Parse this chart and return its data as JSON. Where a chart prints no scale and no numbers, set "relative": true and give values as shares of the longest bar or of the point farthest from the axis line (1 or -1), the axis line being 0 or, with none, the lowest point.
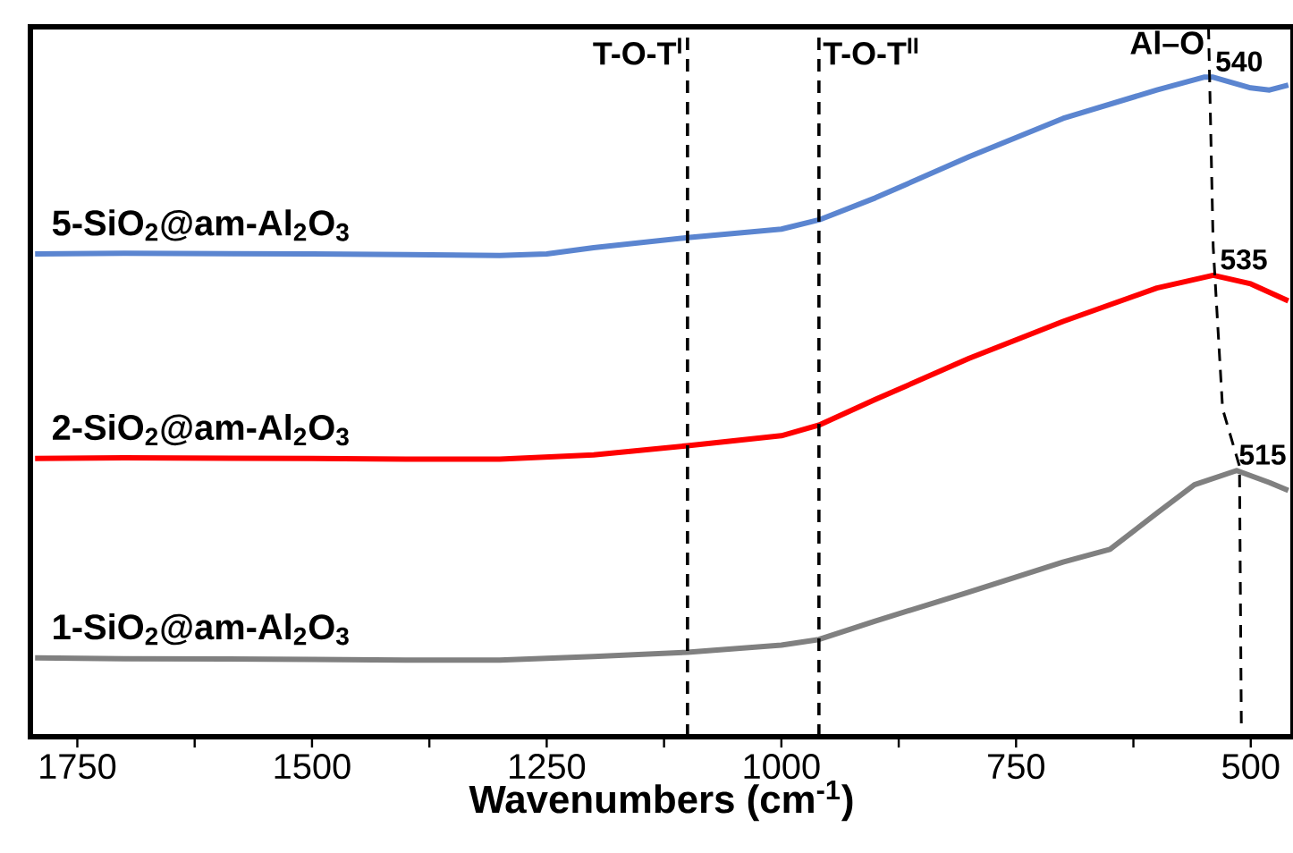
{
  "chart_data": {
    "type": "line",
    "relative": true,
    "xlabel": "Wavenumbers (cm$^{-1}$)",
    "xlim": [
      1800,
      455
    ],
    "xticks": [
      1750,
      {
        "value": 1625,
        "label": null
      },
      1500,
      {
        "value": 1375,
        "label": null
      },
      1250,
      {
        "value": 1125,
        "label": null
      },
      1000,
      {
        "value": 875,
        "label": null
      },
      750,
      {
        "value": 625,
        "label": null
      },
      500
    ],
    "marker": "none",
    "series": [
      {
        "name": "5-SiO$_{2}$@am-Al$_{2}$O$_{3}$",
        "color": "#5b85d0",
        "x": [
          1795,
          1700,
          1500,
          1400,
          1300,
          1250,
          1200,
          1100,
          1000,
          960,
          900,
          800,
          700,
          600,
          550,
          540,
          500,
          480,
          460
        ],
        "values": [
          0.68,
          0.681,
          0.68,
          0.679,
          0.678,
          0.68,
          0.689,
          0.703,
          0.715,
          0.728,
          0.759,
          0.817,
          0.871,
          0.911,
          0.929,
          0.929,
          0.914,
          0.911,
          0.918
        ]
      },
      {
        "name": "2-SiO$_{2}$@am-Al$_{2}$O$_{3}$",
        "color": "#ff0000",
        "x": [
          1795,
          1700,
          1500,
          1400,
          1300,
          1200,
          1100,
          1000,
          960,
          900,
          800,
          700,
          600,
          540,
          500,
          460
        ],
        "values": [
          0.392,
          0.393,
          0.392,
          0.391,
          0.391,
          0.397,
          0.41,
          0.424,
          0.439,
          0.475,
          0.533,
          0.585,
          0.632,
          0.65,
          0.638,
          0.614
        ]
      },
      {
        "name": "1-SiO$_{2}$@am-Al$_{2}$O$_{3}$",
        "color": "#808080",
        "x": [
          1795,
          1700,
          1500,
          1400,
          1300,
          1200,
          1100,
          1000,
          960,
          900,
          800,
          700,
          650,
          600,
          560,
          515,
          480,
          460
        ],
        "values": [
          0.111,
          0.11,
          0.109,
          0.108,
          0.108,
          0.113,
          0.119,
          0.129,
          0.137,
          0.163,
          0.204,
          0.246,
          0.264,
          0.315,
          0.355,
          0.375,
          0.358,
          0.347
        ]
      },
      {
        "name": "Al–O",
        "color": "#000000",
        "line_style": "dashed",
        "x": [
          545,
          540,
          530,
          512,
          510
        ],
        "values": [
          1.0,
          0.69,
          0.462,
          0.381,
          0.01
        ]
      }
    ],
    "ref_lines": [
      {
        "axis": "x",
        "value": 1100,
        "label": "T-O-T$^{I}$",
        "color": "#000000",
        "line_style": "dashed"
      },
      {
        "axis": "x",
        "value": 960,
        "label": "T-O-T$^{II}$",
        "color": "#000000",
        "line_style": "dashed"
      }
    ],
    "annotations": [
      {
        "text": "540",
        "x": 540,
        "y": 0.929
      },
      {
        "text": "535",
        "x": 535,
        "y": 0.65
      },
      {
        "text": "515",
        "x": 515,
        "y": 0.375
      }
    ]
  }
}
